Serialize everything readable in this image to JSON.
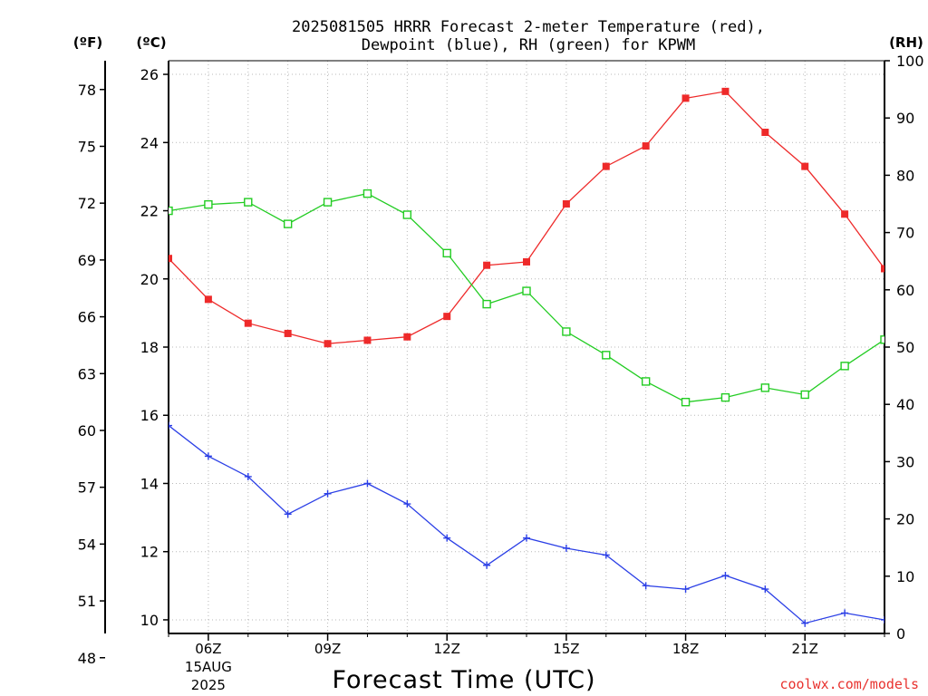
{
  "chart_data": {
    "type": "line",
    "title_line1": "2025081505 HRRR Forecast 2-meter Temperature (red),",
    "title_line2": "Dewpoint (blue), RH (green) for KPWM",
    "xlabel": "Forecast Time (UTC)",
    "credit": "coolwx.com/models",
    "units": {
      "left_outer": "(ºF)",
      "left_inner": "(ºC)",
      "right": "(RH)"
    },
    "x_hours": [
      5,
      6,
      7,
      8,
      9,
      10,
      11,
      12,
      13,
      14,
      15,
      16,
      17,
      18,
      19,
      20,
      21,
      22,
      23
    ],
    "x_ticks": [
      {
        "hour": 6,
        "label": "06Z",
        "date": "15AUG",
        "year": "2025"
      },
      {
        "hour": 9,
        "label": "09Z"
      },
      {
        "hour": 12,
        "label": "12Z"
      },
      {
        "hour": 15,
        "label": "15Z"
      },
      {
        "hour": 18,
        "label": "18Z"
      },
      {
        "hour": 21,
        "label": "21Z"
      }
    ],
    "xlim": [
      5,
      23
    ],
    "celsius_axis": {
      "ylim": [
        9.6,
        26.4
      ],
      "ticks": [
        "10",
        "12",
        "14",
        "16",
        "18",
        "20",
        "22",
        "24",
        "26"
      ]
    },
    "fahrenheit_axis": {
      "ticks": [
        "48",
        "51",
        "54",
        "57",
        "60",
        "63",
        "66",
        "69",
        "72",
        "75",
        "78"
      ]
    },
    "rh_axis": {
      "ylim": [
        0,
        100
      ],
      "ticks": [
        "0",
        "10",
        "20",
        "30",
        "40",
        "50",
        "60",
        "70",
        "80",
        "90",
        "100"
      ]
    },
    "grid": true,
    "series": [
      {
        "name": "Temperature",
        "axis": "C",
        "color": "#ee2a2a",
        "marker": "filled-square",
        "values": [
          20.6,
          19.4,
          18.7,
          18.4,
          18.1,
          18.2,
          18.3,
          18.9,
          20.4,
          20.5,
          22.2,
          23.3,
          23.9,
          25.3,
          25.5,
          24.3,
          23.3,
          21.9,
          20.3
        ]
      },
      {
        "name": "Dewpoint",
        "axis": "C",
        "color": "#2b3fe6",
        "marker": "plus",
        "values": [
          15.7,
          14.8,
          14.2,
          13.1,
          13.7,
          14.0,
          13.4,
          12.4,
          11.6,
          12.4,
          12.1,
          11.9,
          11.0,
          10.9,
          11.3,
          10.9,
          9.9,
          10.2,
          10.0
        ]
      },
      {
        "name": "RH",
        "axis": "RH",
        "color": "#22cc22",
        "marker": "open-square",
        "values": [
          73.8,
          74.9,
          75.3,
          71.5,
          75.3,
          76.8,
          73.1,
          66.4,
          57.5,
          59.8,
          52.7,
          48.6,
          44.0,
          40.4,
          41.2,
          42.9,
          41.7,
          46.7,
          51.3
        ]
      }
    ]
  }
}
